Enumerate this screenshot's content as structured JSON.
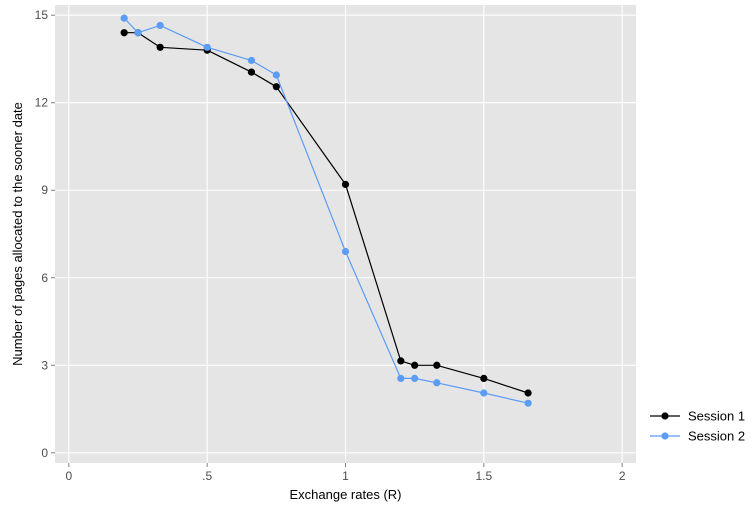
{
  "chart_data": {
    "type": "line",
    "title": "",
    "xlabel": "Exchange rates (R)",
    "ylabel": "Number of pages allocated to the sooner date",
    "xlim": [
      -0.05,
      2.05
    ],
    "ylim": [
      -0.35,
      15.35
    ],
    "x_ticks": [
      0,
      0.5,
      1,
      1.5,
      2
    ],
    "x_tick_labels": [
      "0",
      ".5",
      "1",
      "1.5",
      "2"
    ],
    "y_ticks": [
      0,
      3,
      6,
      9,
      12,
      15
    ],
    "y_tick_labels": [
      "0",
      "3",
      "6",
      "9",
      "12",
      "15"
    ],
    "grid": true,
    "legend_position": "right-bottom",
    "series": [
      {
        "name": "Session 1",
        "color": "#000000",
        "x": [
          0.2,
          0.25,
          0.33,
          0.5,
          0.66,
          0.75,
          1.0,
          1.2,
          1.25,
          1.33,
          1.5,
          1.66
        ],
        "values": [
          14.4,
          14.4,
          13.9,
          13.8,
          13.05,
          12.55,
          9.2,
          3.15,
          3.0,
          3.0,
          2.55,
          2.05
        ]
      },
      {
        "name": "Session 2",
        "color": "#5b9cf6",
        "x": [
          0.2,
          0.25,
          0.33,
          0.5,
          0.66,
          0.75,
          1.0,
          1.2,
          1.25,
          1.33,
          1.5,
          1.66
        ],
        "values": [
          14.9,
          14.4,
          14.65,
          13.9,
          13.45,
          12.95,
          6.9,
          2.55,
          2.55,
          2.4,
          2.05,
          1.7
        ]
      }
    ]
  }
}
